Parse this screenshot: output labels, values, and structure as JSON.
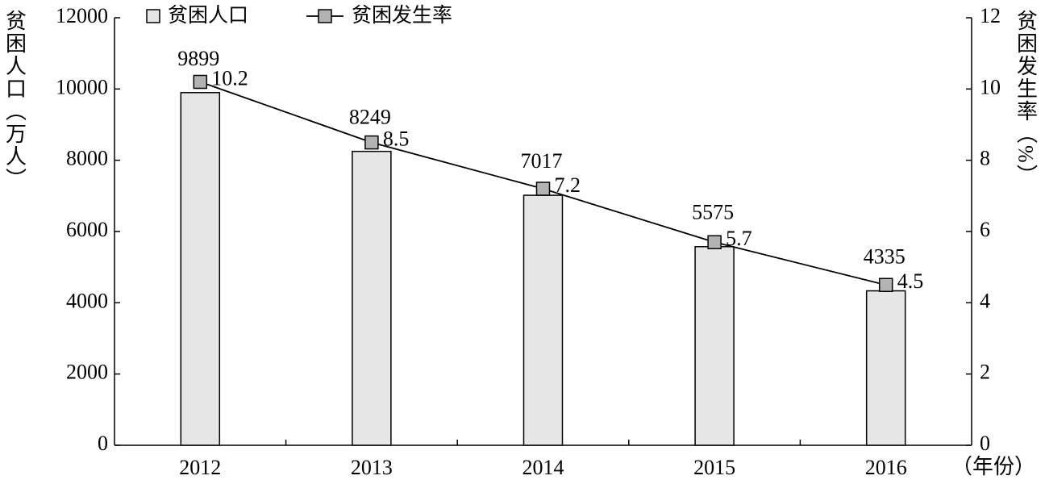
{
  "chart_data": {
    "type": "bar-line",
    "categories": [
      "2012",
      "2013",
      "2014",
      "2015",
      "2016"
    ],
    "series": [
      {
        "name": "贫困人口",
        "color": "#e6e6e6",
        "values": [
          9899,
          8249,
          7017,
          5575,
          4335
        ]
      },
      {
        "name": "贫困发生率",
        "color": "#b3b3b3",
        "axis": "y2",
        "values": [
          10.2,
          8.5,
          7.2,
          5.7,
          4.5
        ]
      }
    ],
    "ylabel": "贫困人口（万人）",
    "y2label": "贫困发生率（%）",
    "xlabel": "（年份）",
    "ylim": [
      0,
      12000
    ],
    "yticks": [
      0,
      2000,
      4000,
      6000,
      8000,
      10000,
      12000
    ],
    "y2lim": [
      0,
      12
    ],
    "y2ticks": [
      0,
      2,
      4,
      6,
      8,
      10,
      12
    ],
    "legend": "top"
  }
}
